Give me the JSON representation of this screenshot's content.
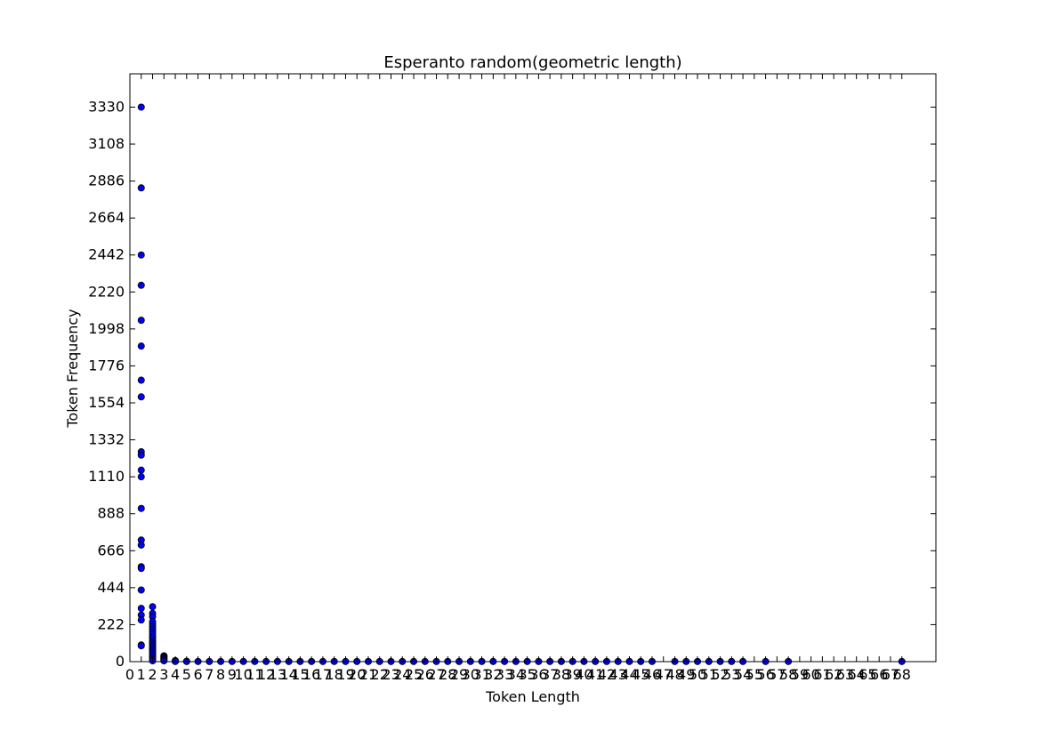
{
  "chart_data": {
    "type": "scatter",
    "title": "Esperanto random(geometric length)",
    "xlabel": "Token Length",
    "ylabel": "Token Frequency",
    "xlim": [
      0,
      71
    ],
    "ylim": [
      0,
      3530
    ],
    "xticks": [
      0,
      1,
      2,
      3,
      4,
      5,
      6,
      7,
      8,
      9,
      10,
      11,
      12,
      13,
      14,
      15,
      16,
      17,
      18,
      19,
      20,
      21,
      22,
      23,
      24,
      25,
      26,
      27,
      28,
      29,
      30,
      31,
      32,
      33,
      34,
      35,
      36,
      37,
      38,
      39,
      40,
      41,
      42,
      43,
      44,
      45,
      46,
      47,
      48,
      49,
      50,
      51,
      52,
      53,
      54,
      55,
      56,
      57,
      58,
      59,
      60,
      61,
      62,
      63,
      64,
      65,
      66,
      67,
      68
    ],
    "yticks": [
      0,
      222,
      444,
      666,
      888,
      1110,
      1332,
      1554,
      1776,
      1998,
      2220,
      2442,
      2664,
      2886,
      3108,
      3330
    ],
    "grid": false,
    "marker_color": "#0000ff",
    "points": [
      [
        1,
        3330
      ],
      [
        1,
        2845
      ],
      [
        1,
        2442
      ],
      [
        1,
        2260
      ],
      [
        1,
        2050
      ],
      [
        1,
        1895
      ],
      [
        1,
        1690
      ],
      [
        1,
        1590
      ],
      [
        1,
        1260
      ],
      [
        1,
        1240
      ],
      [
        1,
        1150
      ],
      [
        1,
        1110
      ],
      [
        1,
        920
      ],
      [
        1,
        730
      ],
      [
        1,
        700
      ],
      [
        1,
        570
      ],
      [
        1,
        560
      ],
      [
        1,
        430
      ],
      [
        1,
        320
      ],
      [
        1,
        280
      ],
      [
        1,
        250
      ],
      [
        1,
        100
      ],
      [
        1,
        95
      ],
      [
        2,
        330
      ],
      [
        2,
        290
      ],
      [
        2,
        270
      ],
      [
        2,
        240
      ],
      [
        2,
        225
      ],
      [
        2,
        210
      ],
      [
        2,
        195
      ],
      [
        2,
        180
      ],
      [
        2,
        165
      ],
      [
        2,
        150
      ],
      [
        2,
        140
      ],
      [
        2,
        125
      ],
      [
        2,
        115
      ],
      [
        2,
        105
      ],
      [
        2,
        95
      ],
      [
        2,
        85
      ],
      [
        2,
        75
      ],
      [
        2,
        65
      ],
      [
        2,
        55
      ],
      [
        2,
        45
      ],
      [
        2,
        35
      ],
      [
        2,
        25
      ],
      [
        2,
        15
      ],
      [
        2,
        5
      ],
      [
        3,
        35
      ],
      [
        3,
        30
      ],
      [
        3,
        25
      ],
      [
        3,
        20
      ],
      [
        3,
        15
      ],
      [
        3,
        10
      ],
      [
        3,
        5
      ],
      [
        4,
        6
      ],
      [
        4,
        3
      ],
      [
        4,
        1
      ],
      [
        5,
        2
      ],
      [
        5,
        1
      ],
      [
        6,
        1
      ],
      [
        7,
        1
      ],
      [
        8,
        1
      ],
      [
        9,
        1
      ],
      [
        10,
        1
      ],
      [
        11,
        1
      ],
      [
        12,
        1
      ],
      [
        13,
        1
      ],
      [
        14,
        1
      ],
      [
        15,
        1
      ],
      [
        16,
        1
      ],
      [
        17,
        1
      ],
      [
        18,
        1
      ],
      [
        19,
        1
      ],
      [
        20,
        1
      ],
      [
        21,
        1
      ],
      [
        22,
        1
      ],
      [
        23,
        1
      ],
      [
        24,
        1
      ],
      [
        25,
        1
      ],
      [
        26,
        1
      ],
      [
        27,
        1
      ],
      [
        28,
        1
      ],
      [
        29,
        1
      ],
      [
        30,
        1
      ],
      [
        31,
        1
      ],
      [
        32,
        1
      ],
      [
        33,
        1
      ],
      [
        34,
        1
      ],
      [
        35,
        1
      ],
      [
        36,
        1
      ],
      [
        37,
        1
      ],
      [
        38,
        1
      ],
      [
        39,
        1
      ],
      [
        40,
        1
      ],
      [
        41,
        1
      ],
      [
        42,
        1
      ],
      [
        43,
        1
      ],
      [
        44,
        1
      ],
      [
        45,
        1
      ],
      [
        46,
        1
      ],
      [
        48,
        1
      ],
      [
        49,
        1
      ],
      [
        50,
        1
      ],
      [
        51,
        1
      ],
      [
        52,
        1
      ],
      [
        53,
        1
      ],
      [
        54,
        1
      ],
      [
        56,
        1
      ],
      [
        58,
        1
      ],
      [
        68,
        1
      ]
    ]
  }
}
